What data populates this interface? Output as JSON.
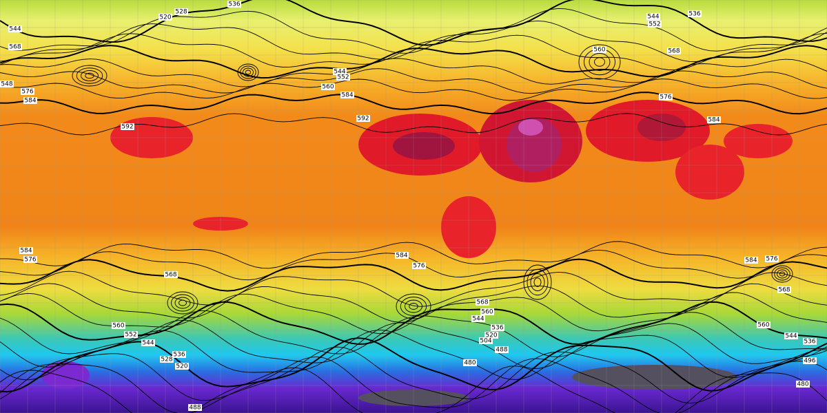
{
  "contour_labels": [
    536,
    528,
    520,
    544,
    568,
    548,
    576,
    584,
    592,
    544,
    552,
    560,
    584,
    592,
    544,
    552,
    536,
    560,
    568,
    576,
    584,
    584,
    576,
    568,
    560,
    552,
    544,
    536,
    528,
    520,
    584,
    576,
    568,
    560,
    544,
    536,
    520,
    504,
    488,
    480,
    584,
    576,
    568,
    560,
    544,
    536,
    488,
    480,
    496
  ]
}
